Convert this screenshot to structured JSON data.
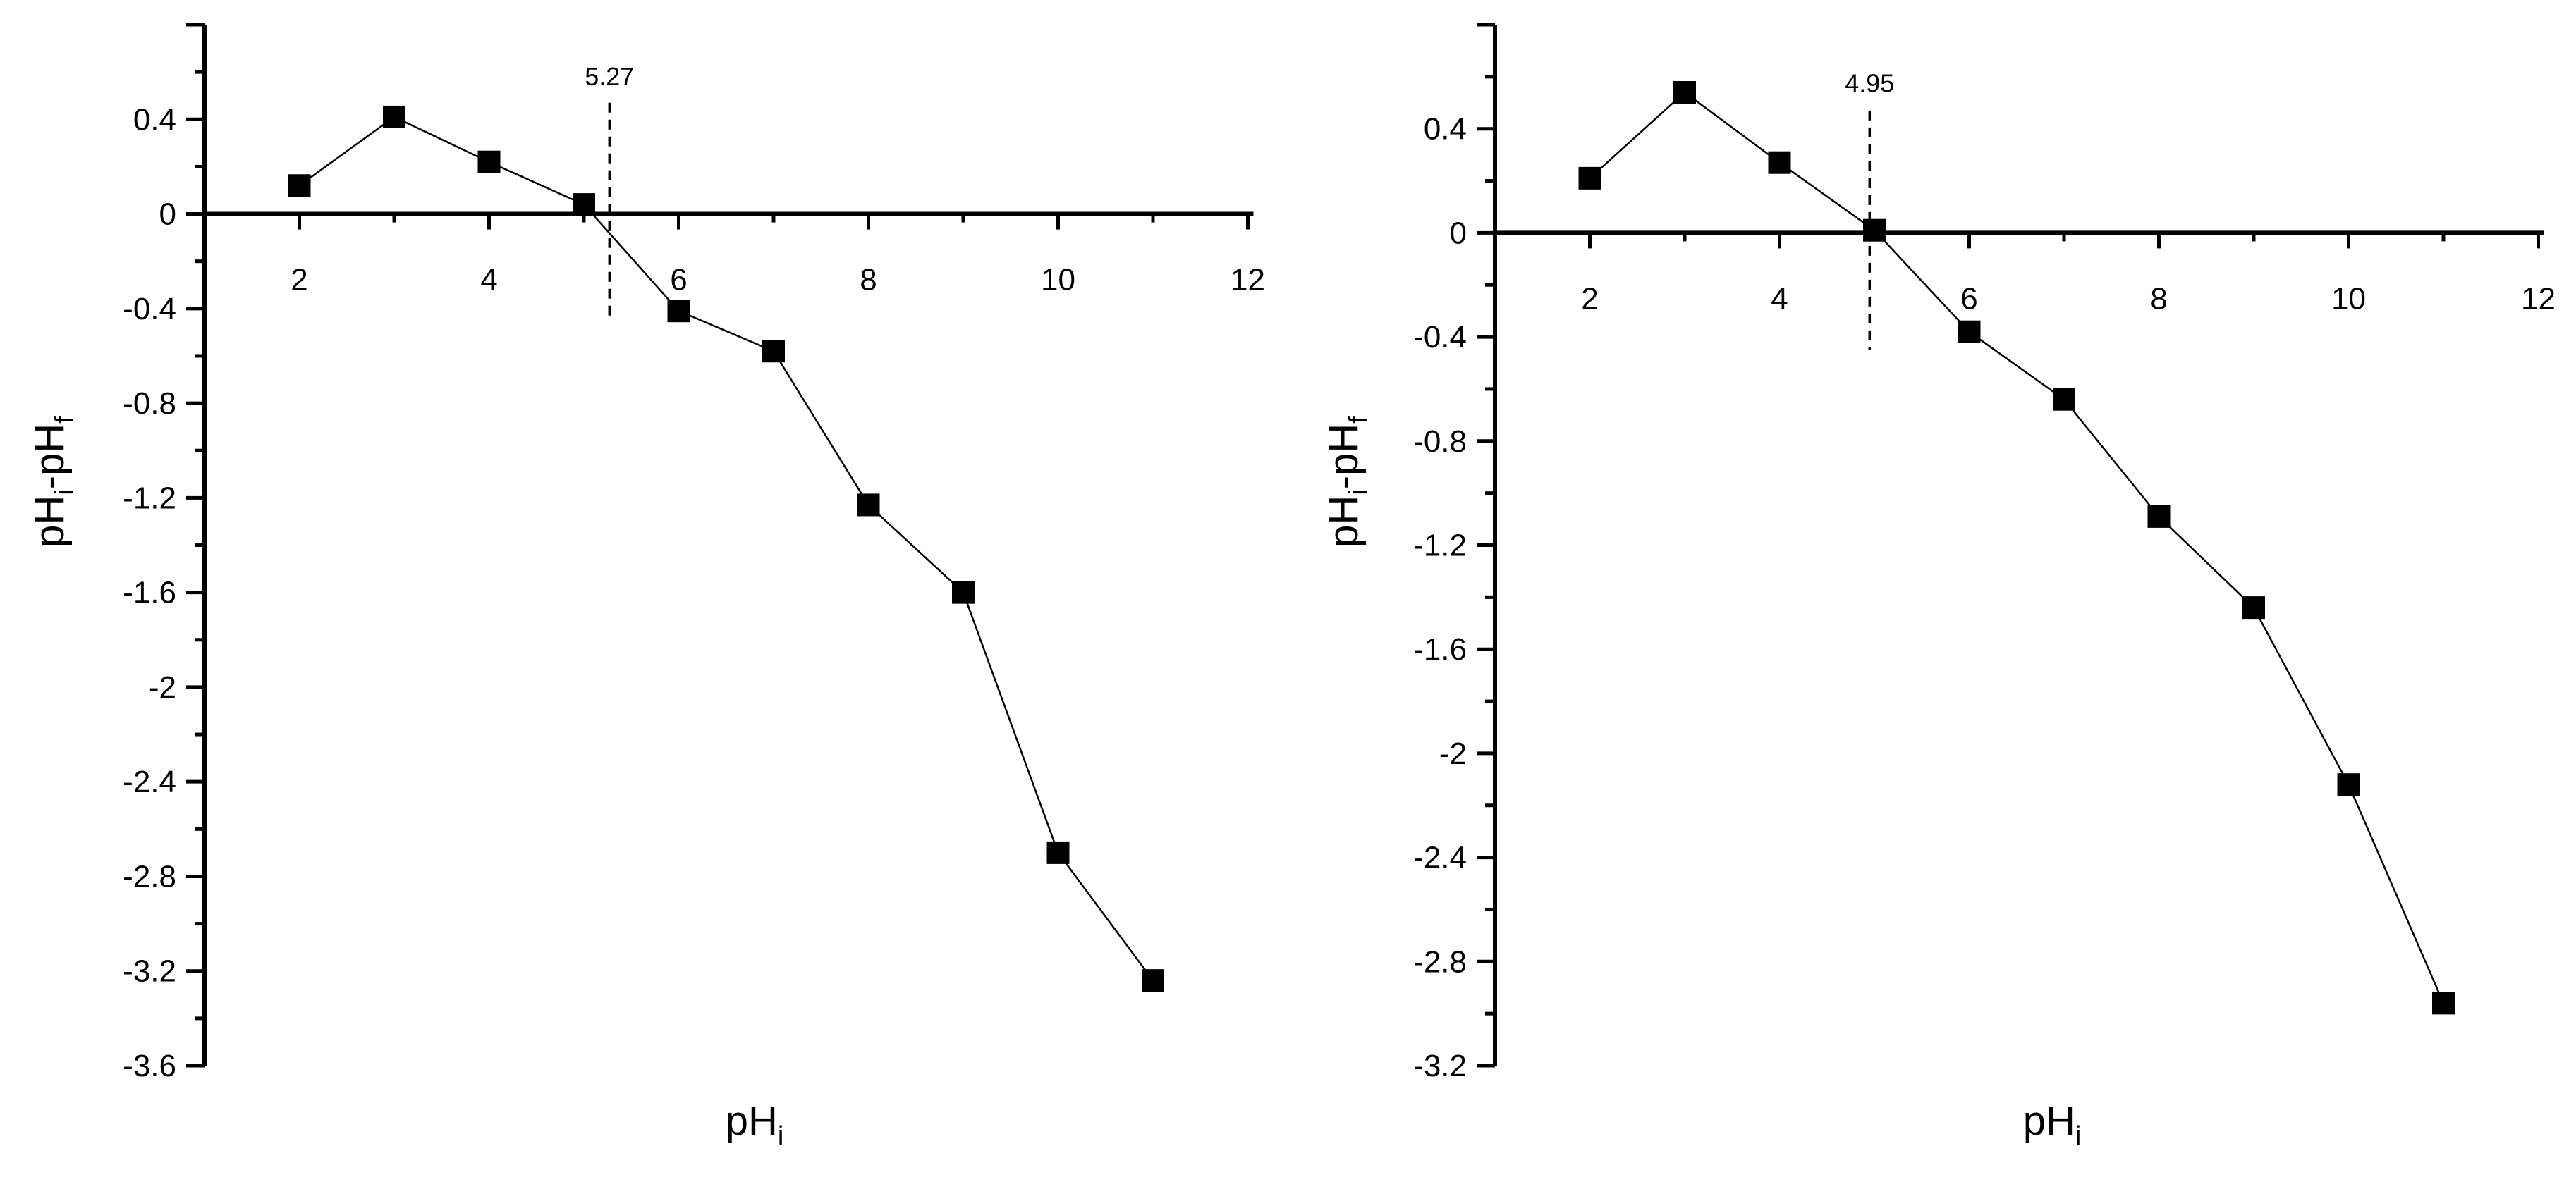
{
  "chart_data": [
    {
      "type": "line",
      "xlabel": "pH",
      "xlabel_sub": "i",
      "ylabel_parts": [
        "pH",
        "i",
        "-pH",
        "f"
      ],
      "xlim": [
        1,
        12
      ],
      "ylim": [
        -3.6,
        0.8
      ],
      "xticks": [
        2,
        4,
        6,
        8,
        10,
        12
      ],
      "yticks": [
        0.4,
        0,
        -0.4,
        -0.8,
        -1.2,
        -1.6,
        -2,
        -2.4,
        -2.8,
        -3.2,
        -3.6
      ],
      "grid": false,
      "legend": "none",
      "marker": "square",
      "color": "#000000",
      "x": [
        2,
        3,
        4,
        5,
        6,
        7,
        8,
        9,
        10,
        11
      ],
      "y": [
        0.12,
        0.41,
        0.22,
        0.04,
        -0.41,
        -0.58,
        -1.23,
        -1.6,
        -2.7,
        -3.24
      ],
      "annotation": {
        "label": "5.27",
        "x": 5.27
      }
    },
    {
      "type": "line",
      "xlabel": "pH",
      "xlabel_sub": "i",
      "ylabel_parts": [
        "pH",
        "i",
        "-pH",
        "f"
      ],
      "xlim": [
        1,
        12
      ],
      "ylim": [
        -3.2,
        0.8
      ],
      "xticks": [
        2,
        4,
        6,
        8,
        10,
        12
      ],
      "yticks": [
        0.4,
        0,
        -0.4,
        -0.8,
        -1.2,
        -1.6,
        -2,
        -2.4,
        -2.8,
        -3.2
      ],
      "grid": false,
      "legend": "none",
      "marker": "square",
      "color": "#000000",
      "x": [
        2,
        3,
        4,
        5,
        6,
        7,
        8,
        9,
        10,
        11
      ],
      "y": [
        0.21,
        0.54,
        0.27,
        0.01,
        -0.38,
        -0.64,
        -1.09,
        -1.44,
        -2.12,
        -2.96
      ],
      "annotation": {
        "label": "4.95",
        "x": 4.95
      }
    }
  ]
}
